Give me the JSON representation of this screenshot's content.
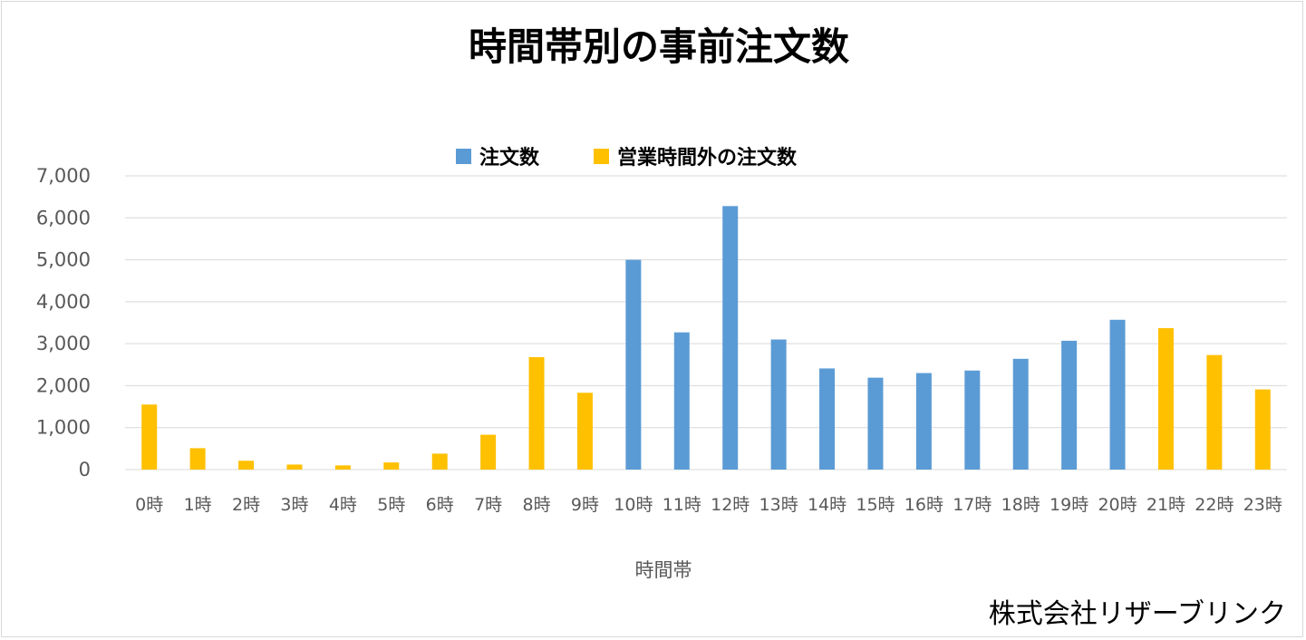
{
  "chart_data": {
    "type": "bar",
    "title": "時間帯別の事前注文数",
    "xlabel": "時間帯",
    "ylabel": "",
    "ylim": [
      0,
      7000
    ],
    "yticks": [
      "0",
      "1,000",
      "2,000",
      "3,000",
      "4,000",
      "5,000",
      "6,000",
      "7,000"
    ],
    "grid": true,
    "legend_position": "top-center",
    "categories": [
      "0時",
      "1時",
      "2時",
      "3時",
      "4時",
      "5時",
      "6時",
      "7時",
      "8時",
      "9時",
      "10時",
      "11時",
      "12時",
      "13時",
      "14時",
      "15時",
      "16時",
      "17時",
      "18時",
      "19時",
      "20時",
      "21時",
      "22時",
      "23時"
    ],
    "series": [
      {
        "name": "注文数",
        "color": "#5b9bd5",
        "values": [
          null,
          null,
          null,
          null,
          null,
          null,
          null,
          null,
          null,
          null,
          5000,
          3270,
          6280,
          3100,
          2410,
          2190,
          2300,
          2360,
          2640,
          3070,
          3570,
          null,
          null,
          null
        ]
      },
      {
        "name": "営業時間外の注文数",
        "color": "#ffc000",
        "values": [
          1550,
          510,
          210,
          120,
          100,
          170,
          380,
          830,
          2680,
          1830,
          null,
          null,
          null,
          null,
          null,
          null,
          null,
          null,
          null,
          null,
          null,
          3370,
          2730,
          1910
        ]
      }
    ]
  },
  "credit": "株式会社リザーブリンク"
}
